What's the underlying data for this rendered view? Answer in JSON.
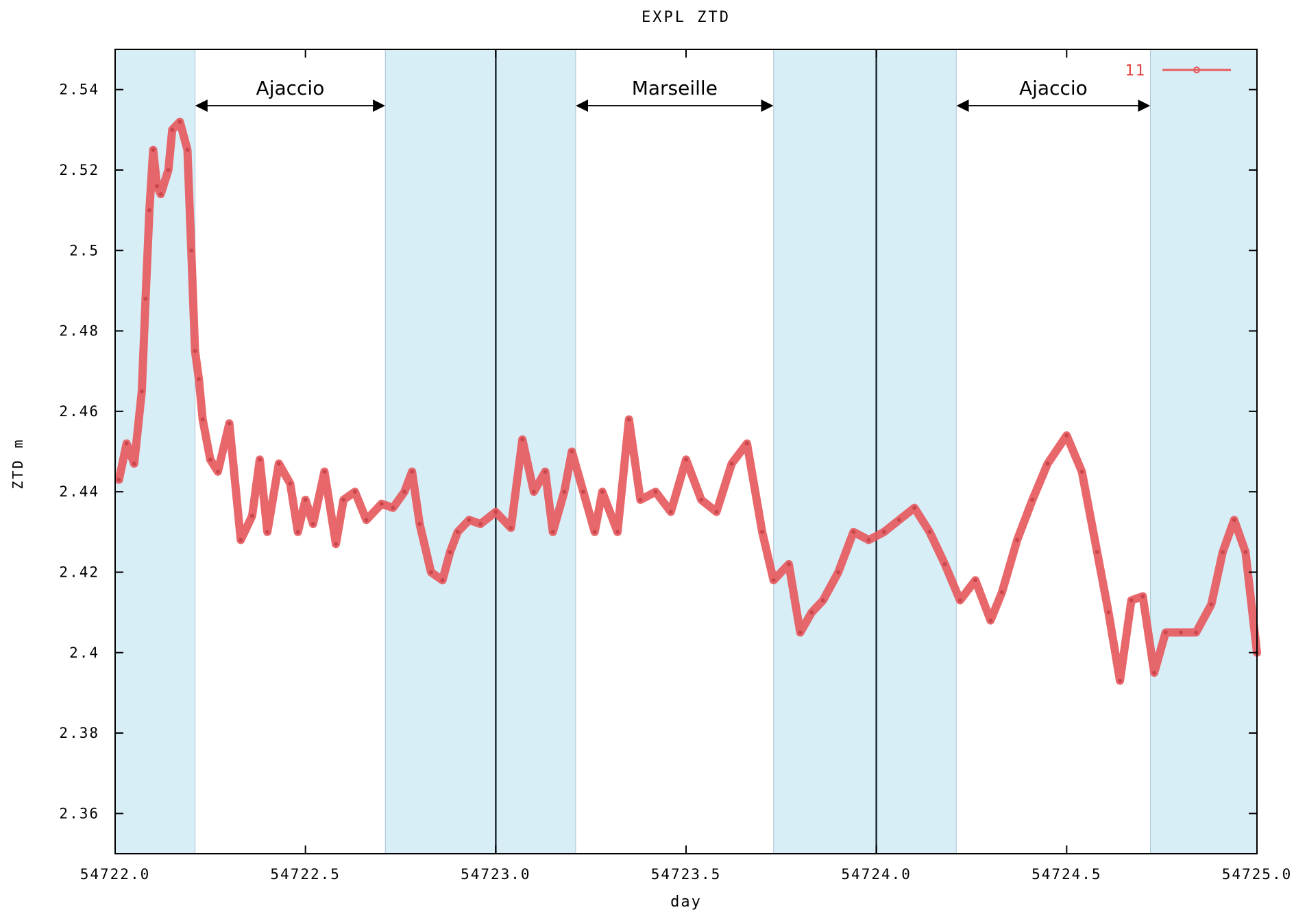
{
  "chart_data": {
    "type": "line",
    "title": "EXPL ZTD",
    "xlabel": "day",
    "ylabel": "ZTD m",
    "xlim": [
      54722.0,
      54725.0
    ],
    "ylim": [
      2.35,
      2.55
    ],
    "x_ticks": [
      "54722.0",
      "54722.5",
      "54723.0",
      "54723.5",
      "54724.0",
      "54724.5",
      "54725.0"
    ],
    "y_ticks": [
      "2.36",
      "2.38",
      "2.4",
      "2.42",
      "2.44",
      "2.46",
      "2.48",
      "2.5",
      "2.52",
      "2.54"
    ],
    "x_tick_values": [
      54722.0,
      54722.5,
      54723.0,
      54723.5,
      54724.0,
      54724.5,
      54725.0
    ],
    "y_tick_values": [
      2.36,
      2.38,
      2.4,
      2.42,
      2.44,
      2.46,
      2.48,
      2.5,
      2.52,
      2.54
    ],
    "legend": {
      "label": "11",
      "placement": "top-right"
    },
    "grid": false,
    "series": [
      {
        "name": "11",
        "color": "#e65a5e",
        "x": [
          54722.01,
          54722.03,
          54722.05,
          54722.07,
          54722.08,
          54722.09,
          54722.1,
          54722.11,
          54722.12,
          54722.14,
          54722.15,
          54722.17,
          54722.19,
          54722.2,
          54722.21,
          54722.22,
          54722.23,
          54722.25,
          54722.27,
          54722.3,
          54722.33,
          54722.36,
          54722.38,
          54722.4,
          54722.43,
          54722.46,
          54722.48,
          54722.5,
          54722.52,
          54722.55,
          54722.58,
          54722.6,
          54722.63,
          54722.66,
          54722.7,
          54722.73,
          54722.76,
          54722.78,
          54722.8,
          54722.83,
          54722.86,
          54722.88,
          54722.9,
          54722.93,
          54722.96,
          54723.0,
          54723.04,
          54723.07,
          54723.1,
          54723.13,
          54723.15,
          54723.18,
          54723.2,
          54723.23,
          54723.26,
          54723.28,
          54723.32,
          54723.35,
          54723.38,
          54723.42,
          54723.46,
          54723.5,
          54723.54,
          54723.58,
          54723.62,
          54723.66,
          54723.7,
          54723.73,
          54723.77,
          54723.8,
          54723.83,
          54723.86,
          54723.9,
          54723.94,
          54723.98,
          54724.02,
          54724.06,
          54724.1,
          54724.14,
          54724.18,
          54724.22,
          54724.26,
          54724.3,
          54724.33,
          54724.37,
          54724.41,
          54724.45,
          54724.5,
          54724.54,
          54724.58,
          54724.61,
          54724.64,
          54724.67,
          54724.7,
          54724.73,
          54724.76,
          54724.8,
          54724.84,
          54724.88,
          54724.91,
          54724.94,
          54724.97,
          54725.0
        ],
        "values": [
          2.443,
          2.452,
          2.447,
          2.465,
          2.488,
          2.51,
          2.525,
          2.516,
          2.514,
          2.52,
          2.53,
          2.532,
          2.525,
          2.5,
          2.475,
          2.468,
          2.458,
          2.448,
          2.445,
          2.457,
          2.428,
          2.434,
          2.448,
          2.43,
          2.447,
          2.442,
          2.43,
          2.438,
          2.432,
          2.445,
          2.427,
          2.438,
          2.44,
          2.433,
          2.437,
          2.436,
          2.44,
          2.445,
          2.432,
          2.42,
          2.418,
          2.425,
          2.43,
          2.433,
          2.432,
          2.435,
          2.431,
          2.453,
          2.44,
          2.445,
          2.43,
          2.44,
          2.45,
          2.44,
          2.43,
          2.44,
          2.43,
          2.458,
          2.438,
          2.44,
          2.435,
          2.448,
          2.438,
          2.435,
          2.447,
          2.452,
          2.43,
          2.418,
          2.422,
          2.405,
          2.41,
          2.413,
          2.42,
          2.43,
          2.428,
          2.43,
          2.433,
          2.436,
          2.43,
          2.422,
          2.413,
          2.418,
          2.408,
          2.415,
          2.428,
          2.438,
          2.447,
          2.454,
          2.445,
          2.425,
          2.41,
          2.393,
          2.413,
          2.414,
          2.395,
          2.405,
          2.405,
          2.405,
          2.412,
          2.425,
          2.433,
          2.425,
          2.4
        ]
      }
    ],
    "shaded_bands": [
      [
        54722.0,
        54722.21
      ],
      [
        54722.71,
        54723.21
      ],
      [
        54723.73,
        54724.21
      ],
      [
        54724.72,
        54725.0
      ]
    ],
    "vertical_lines": [
      54723.0,
      54724.0
    ],
    "band_color": "#d8eef7",
    "annotations": [
      {
        "text": "Ajaccio",
        "x_start": 54722.21,
        "x_end": 54722.71,
        "y": 2.536
      },
      {
        "text": "Marseille",
        "x_start": 54723.21,
        "x_end": 54723.73,
        "y": 2.536
      },
      {
        "text": "Ajaccio",
        "x_start": 54724.21,
        "x_end": 54724.72,
        "y": 2.536
      }
    ]
  }
}
